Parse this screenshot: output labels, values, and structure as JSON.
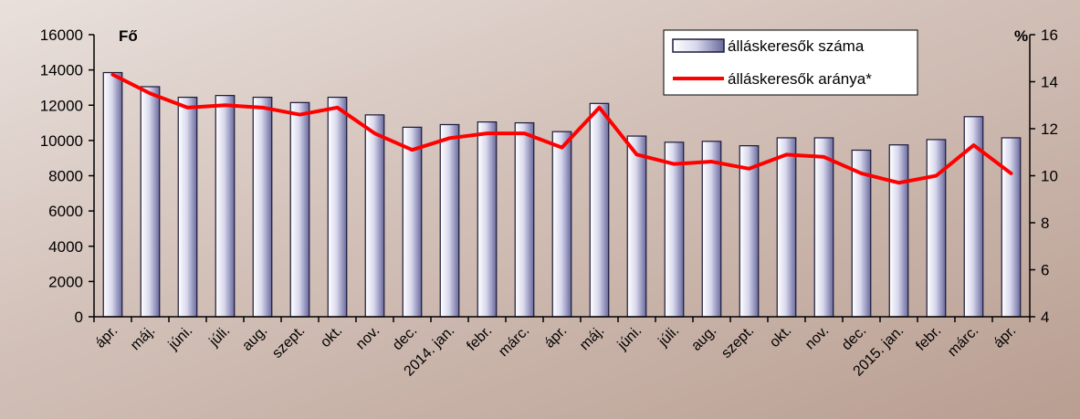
{
  "chart_data": {
    "type": "bar",
    "categories": [
      "ápr.",
      "máj.",
      "júni.",
      "júli.",
      "aug.",
      "szept.",
      "okt.",
      "nov.",
      "dec.",
      "2014. jan.",
      "febr.",
      "márc.",
      "ápr.",
      "máj.",
      "júni.",
      "júli.",
      "aug.",
      "szept.",
      "okt.",
      "nov.",
      "dec.",
      "2015. jan.",
      "febr.",
      "márc.",
      "ápr."
    ],
    "left_axis": {
      "unit": "Fő",
      "ylim": [
        0,
        16000
      ],
      "ticks": [
        "0",
        "2000",
        "4000",
        "6000",
        "8000",
        "10000",
        "12000",
        "14000",
        "16000"
      ]
    },
    "right_axis": {
      "unit": "%",
      "ylim": [
        4,
        16
      ],
      "ticks": [
        "4",
        "6",
        "8",
        "10",
        "12",
        "14",
        "16"
      ]
    },
    "series": [
      {
        "name": "álláskeresők száma",
        "type": "bar",
        "axis": "left",
        "values": [
          13850,
          13050,
          12450,
          12550,
          12450,
          12150,
          12450,
          11450,
          10750,
          10900,
          11050,
          11000,
          10500,
          12100,
          10250,
          9900,
          9950,
          9700,
          10150,
          10150,
          9450,
          9750,
          10050,
          11350,
          10150
        ]
      },
      {
        "name": "álláskeresők aránya*",
        "type": "line",
        "axis": "right",
        "values": [
          14.3,
          13.5,
          12.9,
          13.0,
          12.9,
          12.6,
          12.9,
          11.8,
          11.1,
          11.6,
          11.8,
          11.8,
          11.2,
          12.9,
          10.9,
          10.5,
          10.6,
          10.3,
          10.9,
          10.8,
          10.1,
          9.7,
          10.0,
          11.3,
          10.1
        ]
      }
    ],
    "colors": {
      "bar_light": "#ffffff",
      "bar_dark": "#6a6a9e",
      "bar_stroke": "#1a1a3a",
      "line": "#ff0000"
    },
    "legend_position": "top-right",
    "grid": false
  }
}
